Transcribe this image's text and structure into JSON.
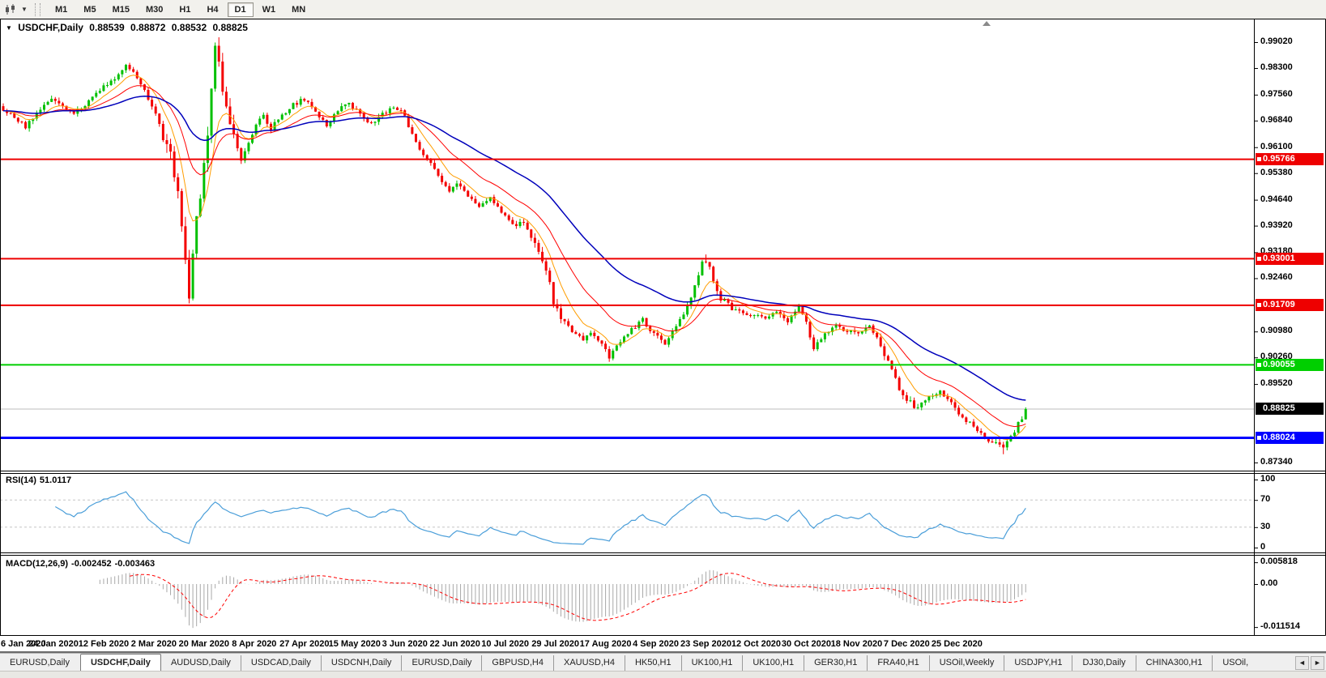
{
  "toolbar": {
    "dropdown_caret": "▼",
    "timeframes": [
      "M1",
      "M5",
      "M15",
      "M30",
      "H1",
      "H4",
      "D1",
      "W1",
      "MN"
    ],
    "selected_timeframe": "D1"
  },
  "chart": {
    "title_caret": "▼",
    "symbol": "USDCHF,Daily",
    "ohlc": {
      "open": "0.88539",
      "high": "0.88872",
      "low": "0.88532",
      "close": "0.88825"
    }
  },
  "price_axis": {
    "ticks": [
      "0.99020",
      "0.98300",
      "0.97560",
      "0.96840",
      "0.96100",
      "0.95380",
      "0.94640",
      "0.93920",
      "0.93180",
      "0.92460",
      "0.90980",
      "0.90260",
      "0.89520",
      "0.87340"
    ],
    "line_labels": [
      {
        "text": "0.95766",
        "bg": "#ee0000"
      },
      {
        "text": "0.93001",
        "bg": "#ee0000"
      },
      {
        "text": "0.91709",
        "bg": "#ee0000"
      },
      {
        "text": "0.90055",
        "bg": "#00cf00"
      },
      {
        "text": "0.88024",
        "bg": "#0000ff"
      }
    ],
    "current_label": {
      "text": "0.88825",
      "bg": "#000000"
    }
  },
  "rsi_panel": {
    "name": "RSI(14)",
    "value": "51.0117",
    "axis": [
      "100",
      "70",
      "30",
      "0"
    ]
  },
  "macd_panel": {
    "name": "MACD(12,26,9)",
    "main_value": "-0.002452",
    "signal_value": "-0.003463",
    "axis": [
      "0.005818",
      "0.00",
      "-0.011514"
    ]
  },
  "tabs": {
    "items": [
      "EURUSD,Daily",
      "USDCHF,Daily",
      "AUDUSD,Daily",
      "USDCAD,Daily",
      "USDCNH,Daily",
      "EURUSD,Daily",
      "GBPUSD,H4",
      "XAUUSD,H4",
      "HK50,H1",
      "UK100,H1",
      "UK100,H1",
      "GER30,H1",
      "FRA40,H1",
      "USOil,Weekly",
      "USDJPY,H1",
      "DJ30,Daily",
      "CHINA300,H1",
      "USOil,"
    ],
    "active_index": 1,
    "scroll_left": "◄",
    "scroll_right": "►"
  },
  "chart_data": {
    "type": "candlestick",
    "symbol": "USDCHF",
    "period": "Daily",
    "bars": 276,
    "x_labels": [
      "6 Jan 2020",
      "24 Jan 2020",
      "12 Feb 2020",
      "2 Mar 2020",
      "20 Mar 2020",
      "8 Apr 2020",
      "27 Apr 2020",
      "15 May 2020",
      "3 Jun 2020",
      "22 Jun 2020",
      "10 Jul 2020",
      "29 Jul 2020",
      "17 Aug 2020",
      "4 Sep 2020",
      "23 Sep 2020",
      "12 Oct 2020",
      "30 Oct 2020",
      "18 Nov 2020",
      "7 Dec 2020",
      "25 Dec 2020"
    ],
    "bars_per_label": 13.5,
    "price_range_visible": [
      0.8705,
      0.9963
    ],
    "close_path_anchors": [
      [
        0,
        0.9712
      ],
      [
        3,
        0.9692
      ],
      [
        6,
        0.9668
      ],
      [
        9,
        0.9702
      ],
      [
        13,
        0.9748
      ],
      [
        16,
        0.9722
      ],
      [
        19,
        0.97
      ],
      [
        22,
        0.973
      ],
      [
        25,
        0.976
      ],
      [
        28,
        0.9788
      ],
      [
        31,
        0.9812
      ],
      [
        33,
        0.9838
      ],
      [
        35,
        0.9824
      ],
      [
        37,
        0.9788
      ],
      [
        39,
        0.9744
      ],
      [
        41,
        0.9702
      ],
      [
        43,
        0.9642
      ],
      [
        45,
        0.9582
      ],
      [
        47,
        0.9478
      ],
      [
        48,
        0.939
      ],
      [
        49,
        0.9282
      ],
      [
        50,
        0.9198
      ],
      [
        51,
        0.932
      ],
      [
        52,
        0.9412
      ],
      [
        53,
        0.9468
      ],
      [
        54,
        0.9556
      ],
      [
        55,
        0.9648
      ],
      [
        56,
        0.978
      ],
      [
        57,
        0.9878
      ],
      [
        58,
        0.9846
      ],
      [
        59,
        0.978
      ],
      [
        60,
        0.9722
      ],
      [
        62,
        0.9642
      ],
      [
        64,
        0.9572
      ],
      [
        66,
        0.9618
      ],
      [
        68,
        0.9678
      ],
      [
        70,
        0.97
      ],
      [
        72,
        0.9662
      ],
      [
        75,
        0.9698
      ],
      [
        78,
        0.9728
      ],
      [
        81,
        0.9744
      ],
      [
        84,
        0.9706
      ],
      [
        87,
        0.9672
      ],
      [
        90,
        0.9714
      ],
      [
        93,
        0.973
      ],
      [
        96,
        0.9702
      ],
      [
        99,
        0.9672
      ],
      [
        102,
        0.97
      ],
      [
        105,
        0.9724
      ],
      [
        108,
        0.97
      ],
      [
        110,
        0.9642
      ],
      [
        112,
        0.9602
      ],
      [
        115,
        0.9562
      ],
      [
        118,
        0.9512
      ],
      [
        120,
        0.9482
      ],
      [
        122,
        0.9514
      ],
      [
        125,
        0.9472
      ],
      [
        128,
        0.9446
      ],
      [
        131,
        0.947
      ],
      [
        134,
        0.9432
      ],
      [
        137,
        0.9392
      ],
      [
        140,
        0.9406
      ],
      [
        143,
        0.9342
      ],
      [
        146,
        0.9272
      ],
      [
        148,
        0.9182
      ],
      [
        150,
        0.9142
      ],
      [
        153,
        0.9102
      ],
      [
        156,
        0.9072
      ],
      [
        158,
        0.9094
      ],
      [
        161,
        0.9062
      ],
      [
        163,
        0.9026
      ],
      [
        166,
        0.9068
      ],
      [
        169,
        0.9104
      ],
      [
        172,
        0.913
      ],
      [
        175,
        0.9092
      ],
      [
        178,
        0.9062
      ],
      [
        181,
        0.9112
      ],
      [
        184,
        0.9164
      ],
      [
        186,
        0.9228
      ],
      [
        188,
        0.9288
      ],
      [
        189,
        0.9298
      ],
      [
        191,
        0.9242
      ],
      [
        193,
        0.9192
      ],
      [
        196,
        0.9162
      ],
      [
        199,
        0.9146
      ],
      [
        202,
        0.914
      ],
      [
        205,
        0.9136
      ],
      [
        208,
        0.9156
      ],
      [
        211,
        0.9122
      ],
      [
        214,
        0.9166
      ],
      [
        216,
        0.9122
      ],
      [
        218,
        0.905
      ],
      [
        221,
        0.9094
      ],
      [
        224,
        0.9114
      ],
      [
        227,
        0.91
      ],
      [
        230,
        0.9088
      ],
      [
        233,
        0.9118
      ],
      [
        236,
        0.9056
      ],
      [
        239,
        0.8992
      ],
      [
        241,
        0.8932
      ],
      [
        243,
        0.8906
      ],
      [
        246,
        0.8886
      ],
      [
        249,
        0.8914
      ],
      [
        252,
        0.893
      ],
      [
        255,
        0.8896
      ],
      [
        258,
        0.8862
      ],
      [
        261,
        0.8832
      ],
      [
        264,
        0.8802
      ],
      [
        267,
        0.8788
      ],
      [
        269,
        0.8776
      ],
      [
        271,
        0.8802
      ],
      [
        273,
        0.8842
      ],
      [
        275,
        0.88825
      ]
    ],
    "key_extremes": [
      {
        "i": 50,
        "low": 0.9176
      },
      {
        "i": 57,
        "high": 0.9901
      },
      {
        "i": 189,
        "high": 0.9312
      },
      {
        "i": 269,
        "low": 0.8757
      }
    ],
    "last_bar": {
      "open": 0.88539,
      "high": 0.88872,
      "low": 0.88532,
      "close": 0.88825
    },
    "horizontal_lines": [
      {
        "price": 0.95766,
        "color": "#ee0000",
        "width": 2
      },
      {
        "price": 0.93001,
        "color": "#ee0000",
        "width": 2
      },
      {
        "price": 0.91709,
        "color": "#ee0000",
        "width": 2
      },
      {
        "price": 0.90055,
        "color": "#00cf00",
        "width": 2
      },
      {
        "price": 0.88024,
        "color": "#0000ff",
        "width": 3
      }
    ],
    "current_price": {
      "price": 0.88825,
      "line_color": "#bdbdbd"
    },
    "moving_averages": [
      {
        "period": 8,
        "type": "ema",
        "color": "#ff9d00",
        "width": 1
      },
      {
        "period": 20,
        "type": "ema",
        "color": "#ff0000",
        "width": 1
      },
      {
        "period": 48,
        "type": "ema",
        "color": "#0000bb",
        "width": 1.5
      }
    ],
    "candle_colors": {
      "up": "#00c000",
      "down": "#f40000"
    },
    "rsi": {
      "period": 14,
      "current": 51.0117,
      "color": "#4a9ed9",
      "levels": [
        70,
        30
      ],
      "axis_range": [
        0,
        100
      ]
    },
    "macd": {
      "fast": 12,
      "slow": 26,
      "signal": 9,
      "main": -0.002452,
      "signal_value": -0.003463,
      "axis_range": [
        -0.011514,
        0.005818
      ],
      "hist_color": "#a8a8a8",
      "signal_color": "#ff0000"
    }
  }
}
